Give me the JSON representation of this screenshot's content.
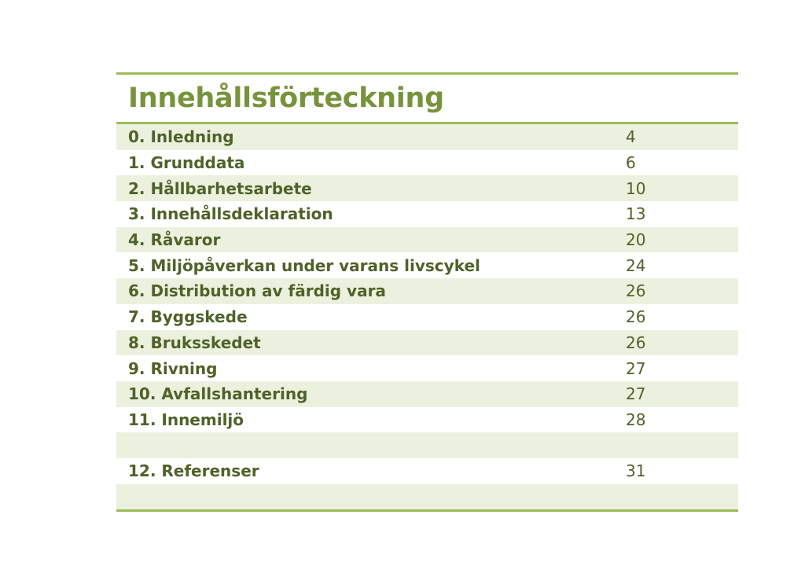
{
  "toc": {
    "title": "Innehållsförteckning",
    "entries": [
      {
        "label": "0. Inledning",
        "page": "4"
      },
      {
        "label": "1. Grunddata",
        "page": "6"
      },
      {
        "label": "2. Hållbarhetsarbete",
        "page": "10"
      },
      {
        "label": "3. Innehållsdeklaration",
        "page": "13"
      },
      {
        "label": "4. Råvaror",
        "page": "20"
      },
      {
        "label": "5. Miljöpåverkan under varans livscykel",
        "page": "24"
      },
      {
        "label": "6. Distribution av färdig vara",
        "page": "26"
      },
      {
        "label": "7. Byggskede",
        "page": "26"
      },
      {
        "label": "8. Bruksskedet",
        "page": "26"
      },
      {
        "label": "9. Rivning",
        "page": "27"
      },
      {
        "label": "10. Avfallshantering",
        "page": "27"
      },
      {
        "label": "11. Innemiljö",
        "page": "28"
      },
      {
        "label": "",
        "page": ""
      },
      {
        "label": "12. Referenser",
        "page": "31"
      },
      {
        "label": "",
        "page": ""
      }
    ]
  },
  "colors": {
    "accent_green": "#9bbb59",
    "title_green": "#77933c",
    "text_green": "#4f6228",
    "row_shade": "#ebf1de"
  }
}
